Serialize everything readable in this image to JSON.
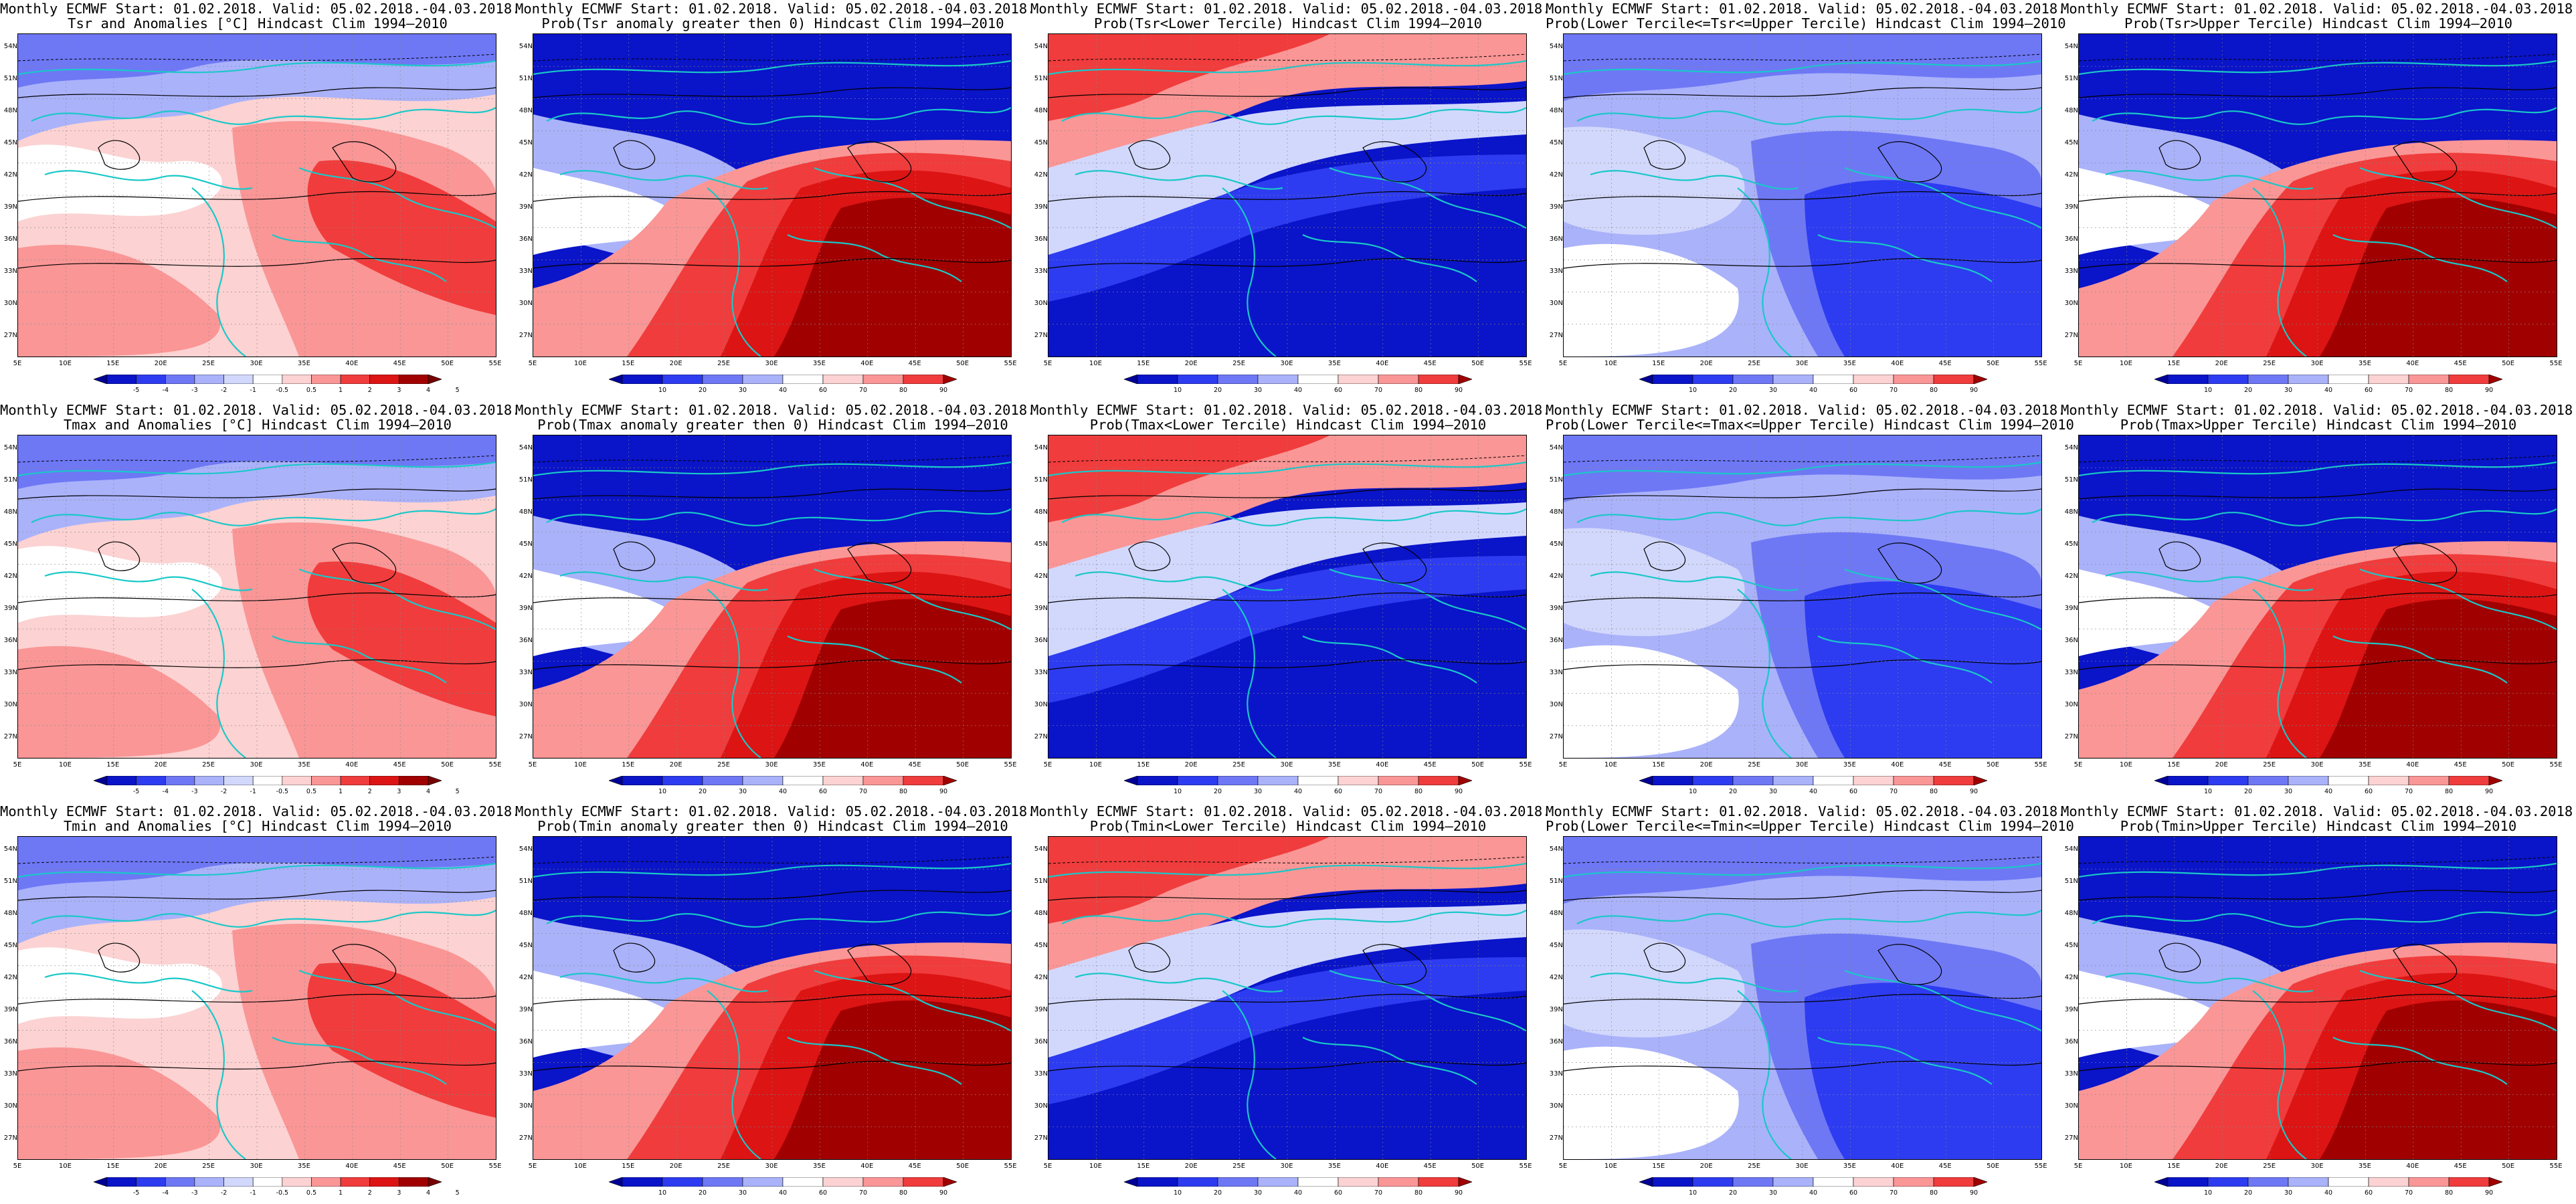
{
  "common": {
    "lat_labels": [
      "54N",
      "51N",
      "48N",
      "45N",
      "42N",
      "39N",
      "36N",
      "33N",
      "30N",
      "27N"
    ],
    "lon_labels": [
      "5E",
      "10E",
      "15E",
      "20E",
      "25E",
      "30E",
      "35E",
      "40E",
      "45E",
      "50E",
      "55E"
    ],
    "anomaly_ticks": [
      "-5",
      "-4",
      "-3",
      "-2",
      "-1",
      "-0.5",
      "0.5",
      "1",
      "2",
      "3",
      "4",
      "5"
    ],
    "prob_ticks": [
      "10",
      "20",
      "30",
      "40",
      "60",
      "70",
      "80",
      "90"
    ],
    "colors": {
      "deep_blue": "#0a14c8",
      "blue": "#2d3cf0",
      "mid_blue": "#6e78f5",
      "light_blue": "#aab2fa",
      "pale_blue": "#d2d8fc",
      "white": "#ffffff",
      "pale_red": "#fcd2d2",
      "light_red": "#fa9696",
      "red": "#f03c3c",
      "mid_red": "#dc1414",
      "dark_red": "#a00000",
      "coast": "#19c8c8",
      "contour": "#000000"
    }
  },
  "panels": [
    {
      "line1": "Monthly ECMWF Start: 01.02.2018. Valid: 05.02.2018.-04.03.2018.",
      "line2": "Tsr and Anomalies [°C] Hindcast Clim 1994–2010",
      "kind": "anom"
    },
    {
      "line1": "Monthly ECMWF Start: 01.02.2018. Valid: 05.02.2018.-04.03.2018.",
      "line2": "Prob(Tsr anomaly greater then 0) Hindcast Clim 1994–2010",
      "kind": "pgt"
    },
    {
      "line1": "Monthly ECMWF Start: 01.02.2018. Valid: 05.02.2018.-04.03.2018.",
      "line2": "Prob(Tsr<Lower Tercile) Hindcast Clim 1994–2010",
      "kind": "plow"
    },
    {
      "line1": "Monthly ECMWF Start: 01.02.2018. Valid: 05.02.2018.-04.03.2018.",
      "line2": "Prob(Lower Tercile<=Tsr<=Upper Tercile) Hindcast Clim 1994–2010",
      "kind": "pmid"
    },
    {
      "line1": "Monthly ECMWF Start: 01.02.2018. Valid: 05.02.2018.-04.03.2018.",
      "line2": "Prob(Tsr>Upper Tercile) Hindcast Clim 1994–2010",
      "kind": "pup"
    },
    {
      "line1": "Monthly ECMWF Start: 01.02.2018. Valid: 05.02.2018.-04.03.2018.",
      "line2": "Tmax and Anomalies [°C] Hindcast Clim 1994–2010",
      "kind": "anom"
    },
    {
      "line1": "Monthly ECMWF Start: 01.02.2018. Valid: 05.02.2018.-04.03.2018.",
      "line2": "Prob(Tmax anomaly greater then 0) Hindcast Clim 1994–2010",
      "kind": "pgt"
    },
    {
      "line1": "Monthly ECMWF Start: 01.02.2018. Valid: 05.02.2018.-04.03.2018.",
      "line2": "Prob(Tmax<Lower Tercile) Hindcast Clim 1994–2010",
      "kind": "plow"
    },
    {
      "line1": "Monthly ECMWF Start: 01.02.2018. Valid: 05.02.2018.-04.03.2018.",
      "line2": "Prob(Lower Tercile<=Tmax<=Upper Tercile) Hindcast Clim 1994–2010",
      "kind": "pmid"
    },
    {
      "line1": "Monthly ECMWF Start: 01.02.2018. Valid: 05.02.2018.-04.03.2018.",
      "line2": "Prob(Tmax>Upper Tercile) Hindcast Clim 1994–2010",
      "kind": "pup"
    },
    {
      "line1": "Monthly ECMWF Start: 01.02.2018. Valid: 05.02.2018.-04.03.2018.",
      "line2": "Tmin and Anomalies [°C] Hindcast Clim 1994–2010",
      "kind": "anom"
    },
    {
      "line1": "Monthly ECMWF Start: 01.02.2018. Valid: 05.02.2018.-04.03.2018.",
      "line2": "Prob(Tmin anomaly greater then 0) Hindcast Clim 1994–2010",
      "kind": "pgt"
    },
    {
      "line1": "Monthly ECMWF Start: 01.02.2018. Valid: 05.02.2018.-04.03.2018.",
      "line2": "Prob(Tmin<Lower Tercile) Hindcast Clim 1994–2010",
      "kind": "plow"
    },
    {
      "line1": "Monthly ECMWF Start: 01.02.2018. Valid: 05.02.2018.-04.03.2018.",
      "line2": "Prob(Lower Tercile<=Tmin<=Upper Tercile) Hindcast Clim 1994–2010",
      "kind": "pmid"
    },
    {
      "line1": "Monthly ECMWF Start: 01.02.2018. Valid: 05.02.2018.-04.03.2018.",
      "line2": "Prob(Tmin>Upper Tercile) Hindcast Clim 1994–2010",
      "kind": "pup"
    }
  ]
}
